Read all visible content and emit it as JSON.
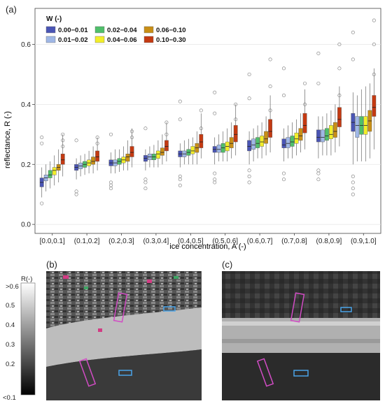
{
  "panels": {
    "a": "(a)",
    "b": "(b)",
    "c": "(c)"
  },
  "colorbar": {
    "title": "R(-)",
    "top_label": ">0.6",
    "bottom_label": "<0.1",
    "ticks": [
      "0.5",
      "0.4",
      "0.3",
      "0.2"
    ]
  },
  "colors": {
    "w1": "#4a55b5",
    "w2": "#9fb7e6",
    "w3": "#4fbf6a",
    "w4": "#f2ee2a",
    "w5": "#c98f16",
    "w6": "#c43a12",
    "outline_magenta": "#d14cc4",
    "outline_blue": "#4aa3e8"
  },
  "chart_data": {
    "type": "box",
    "title": "",
    "xlabel": "ice concentration, A (-)",
    "ylabel": "reflectance, R (-)",
    "ylim": [
      -0.03,
      0.72
    ],
    "yticks": [
      0.0,
      0.2,
      0.4,
      0.6
    ],
    "ytick_labels": [
      "0.0",
      "0.2",
      "0.4",
      "0.6"
    ],
    "grid": true,
    "legend_position": "top-left",
    "legend_title": "W (-)",
    "categories": [
      "[0.0,0.1]",
      "(0.1,0.2]",
      "(0.2,0.3]",
      "(0.3,0.4]",
      "(0.4,0.5]",
      "(0.5,0.6]",
      "(0.6,0.7]",
      "(0.7,0.8]",
      "(0.8,0.9]",
      "(0.9,1.0]"
    ],
    "series": [
      {
        "name": "0.00−0.01",
        "color": "#4a55b5",
        "median": [
          0.14,
          0.19,
          0.205,
          0.22,
          0.235,
          0.25,
          0.26,
          0.265,
          0.29,
          0.34
        ],
        "q1": [
          0.125,
          0.18,
          0.195,
          0.21,
          0.225,
          0.24,
          0.245,
          0.255,
          0.275,
          0.31
        ],
        "q3": [
          0.155,
          0.2,
          0.215,
          0.23,
          0.245,
          0.26,
          0.28,
          0.285,
          0.315,
          0.37
        ],
        "whisker_low": [
          0.09,
          0.15,
          0.17,
          0.18,
          0.19,
          0.2,
          0.2,
          0.21,
          0.22,
          0.2
        ],
        "whisker_high": [
          0.19,
          0.22,
          0.24,
          0.25,
          0.27,
          0.29,
          0.31,
          0.32,
          0.36,
          0.44
        ]
      },
      {
        "name": "0.01−0.02",
        "color": "#9fb7e6",
        "median": [
          0.155,
          0.195,
          0.205,
          0.225,
          0.235,
          0.25,
          0.265,
          0.27,
          0.29,
          0.33
        ],
        "q1": [
          0.145,
          0.185,
          0.195,
          0.215,
          0.225,
          0.24,
          0.25,
          0.255,
          0.275,
          0.29
        ],
        "q3": [
          0.165,
          0.205,
          0.215,
          0.235,
          0.245,
          0.265,
          0.285,
          0.29,
          0.315,
          0.36
        ],
        "whisker_low": [
          0.11,
          0.16,
          0.17,
          0.19,
          0.2,
          0.21,
          0.21,
          0.22,
          0.23,
          0.21
        ],
        "whisker_high": [
          0.2,
          0.23,
          0.25,
          0.26,
          0.28,
          0.3,
          0.32,
          0.33,
          0.36,
          0.43
        ]
      },
      {
        "name": "0.02−0.04",
        "color": "#4fbf6a",
        "median": [
          0.165,
          0.2,
          0.21,
          0.225,
          0.24,
          0.255,
          0.27,
          0.275,
          0.295,
          0.33
        ],
        "q1": [
          0.155,
          0.19,
          0.2,
          0.215,
          0.23,
          0.24,
          0.255,
          0.26,
          0.28,
          0.3
        ],
        "q3": [
          0.18,
          0.21,
          0.22,
          0.235,
          0.25,
          0.27,
          0.29,
          0.295,
          0.32,
          0.36
        ],
        "whisker_low": [
          0.12,
          0.165,
          0.175,
          0.19,
          0.2,
          0.21,
          0.22,
          0.22,
          0.23,
          0.21
        ],
        "whisker_high": [
          0.21,
          0.235,
          0.25,
          0.265,
          0.285,
          0.31,
          0.33,
          0.34,
          0.37,
          0.45
        ]
      },
      {
        "name": "0.04−0.06",
        "color": "#f2ee2a",
        "median": [
          0.18,
          0.205,
          0.215,
          0.235,
          0.245,
          0.26,
          0.275,
          0.285,
          0.3,
          0.33
        ],
        "q1": [
          0.165,
          0.195,
          0.205,
          0.22,
          0.235,
          0.245,
          0.26,
          0.27,
          0.285,
          0.3
        ],
        "q3": [
          0.19,
          0.215,
          0.225,
          0.245,
          0.26,
          0.275,
          0.295,
          0.305,
          0.33,
          0.36
        ],
        "whisker_low": [
          0.13,
          0.17,
          0.18,
          0.19,
          0.2,
          0.21,
          0.22,
          0.23,
          0.23,
          0.21
        ],
        "whisker_high": [
          0.23,
          0.245,
          0.26,
          0.28,
          0.29,
          0.32,
          0.34,
          0.35,
          0.38,
          0.46
        ]
      },
      {
        "name": "0.06−0.10",
        "color": "#c98f16",
        "median": [
          0.19,
          0.21,
          0.225,
          0.24,
          0.255,
          0.27,
          0.285,
          0.295,
          0.31,
          0.345
        ],
        "q1": [
          0.18,
          0.2,
          0.21,
          0.23,
          0.24,
          0.255,
          0.27,
          0.28,
          0.29,
          0.31
        ],
        "q3": [
          0.2,
          0.225,
          0.235,
          0.255,
          0.27,
          0.29,
          0.31,
          0.32,
          0.34,
          0.38
        ],
        "whisker_low": [
          0.14,
          0.17,
          0.18,
          0.2,
          0.2,
          0.22,
          0.23,
          0.24,
          0.24,
          0.22
        ],
        "whisker_high": [
          0.25,
          0.26,
          0.28,
          0.3,
          0.31,
          0.34,
          0.36,
          0.37,
          0.4,
          0.47
        ]
      },
      {
        "name": "0.10−0.30",
        "color": "#c43a12",
        "median": [
          0.215,
          0.225,
          0.24,
          0.26,
          0.275,
          0.3,
          0.31,
          0.33,
          0.35,
          0.39
        ],
        "q1": [
          0.2,
          0.21,
          0.225,
          0.245,
          0.255,
          0.275,
          0.29,
          0.305,
          0.325,
          0.36
        ],
        "q3": [
          0.235,
          0.245,
          0.26,
          0.28,
          0.3,
          0.33,
          0.35,
          0.37,
          0.39,
          0.43
        ],
        "whisker_low": [
          0.16,
          0.18,
          0.19,
          0.21,
          0.22,
          0.23,
          0.24,
          0.25,
          0.26,
          0.25
        ],
        "whisker_high": [
          0.3,
          0.29,
          0.32,
          0.34,
          0.37,
          0.4,
          0.43,
          0.45,
          0.46,
          0.52
        ]
      }
    ],
    "outliers_high": [
      [
        0.26,
        0.27,
        0.28,
        0.29,
        0.3
      ],
      [
        0.27,
        0.28,
        0.29
      ],
      [
        0.29,
        0.3,
        0.31
      ],
      [
        0.3,
        0.32,
        0.34
      ],
      [
        0.32,
        0.35,
        0.38,
        0.41
      ],
      [
        0.35,
        0.37,
        0.4,
        0.44
      ],
      [
        0.38,
        0.42,
        0.46,
        0.5,
        0.55
      ],
      [
        0.4,
        0.43,
        0.47,
        0.52
      ],
      [
        0.43,
        0.47,
        0.52,
        0.57,
        0.6
      ],
      [
        0.5,
        0.55,
        0.6,
        0.64,
        0.68
      ]
    ],
    "outliers_low": [
      [
        0.07
      ],
      [
        0.1,
        0.11
      ],
      [
        0.12,
        0.13,
        0.14
      ],
      [
        0.12,
        0.14,
        0.15
      ],
      [
        0.13,
        0.15,
        0.16
      ],
      [
        0.14,
        0.15,
        0.17
      ],
      [
        0.14,
        0.16,
        0.18
      ],
      [
        0.15,
        0.17
      ],
      [
        0.15,
        0.17,
        0.18
      ],
      [
        0.1,
        0.12,
        0.14,
        0.16
      ]
    ]
  }
}
